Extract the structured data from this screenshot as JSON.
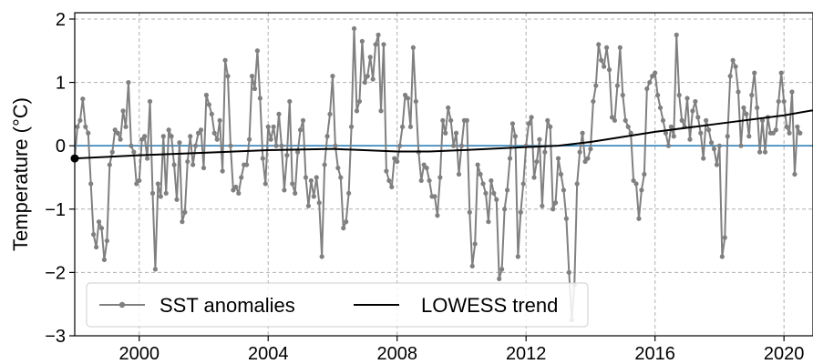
{
  "chart_data": {
    "type": "line",
    "title": "",
    "xlabel": "",
    "ylabel": "Temperature (°C)",
    "xlim": [
      1998.0,
      2020.9
    ],
    "ylim": [
      -3.0,
      2.1
    ],
    "grid": true,
    "legend_position": "bottom-left",
    "x_ticks": [
      2000,
      2004,
      2008,
      2012,
      2016,
      2020
    ],
    "x_tick_labels": [
      "2000",
      "2004",
      "2008",
      "2012",
      "2016",
      "2020"
    ],
    "y_ticks": [
      -3,
      -2,
      -1,
      0,
      1,
      2
    ],
    "y_tick_labels": [
      "−3",
      "−2",
      "−1",
      "0",
      "1",
      "2"
    ],
    "reference_line": {
      "y": 0,
      "color": "#1f77b4"
    },
    "series": [
      {
        "name": "SST anomalies",
        "color": "#808080",
        "marker": "circle",
        "x_start": 1998.0,
        "x_step": 0.08333,
        "values": [
          -0.2,
          0.3,
          0.4,
          0.74,
          0.3,
          0.2,
          -0.6,
          -1.4,
          -1.6,
          -1.2,
          -1.3,
          -1.8,
          -1.5,
          -0.3,
          -0.1,
          0.25,
          0.2,
          0.1,
          0.55,
          0.3,
          1.0,
          0.0,
          -0.1,
          -0.6,
          -0.55,
          0.1,
          0.15,
          -0.2,
          0.7,
          -0.75,
          -1.95,
          -0.6,
          -0.8,
          0.15,
          -0.75,
          0.25,
          0.15,
          -0.3,
          -0.85,
          0.05,
          -1.2,
          -1.05,
          -0.25,
          0.15,
          -0.3,
          0.0,
          0.2,
          0.25,
          -0.35,
          0.8,
          0.65,
          0.5,
          0.2,
          0.1,
          0.4,
          -0.4,
          1.35,
          1.1,
          0.0,
          -0.7,
          -0.65,
          -0.75,
          -0.5,
          -0.3,
          -0.3,
          0.1,
          1.1,
          0.9,
          1.5,
          0.75,
          -0.2,
          -0.6,
          0.3,
          0.1,
          0.3,
          0.0,
          0.5,
          0.0,
          -0.7,
          -0.15,
          0.7,
          -0.6,
          -0.75,
          -0.1,
          0.25,
          0.4,
          -0.5,
          -0.95,
          -0.55,
          -0.8,
          -0.5,
          -0.9,
          -1.75,
          -0.3,
          0.15,
          0.5,
          1.1,
          0.0,
          -0.35,
          -0.5,
          -1.3,
          -1.2,
          -0.75,
          0.3,
          1.85,
          0.55,
          0.7,
          1.65,
          1.0,
          1.1,
          1.4,
          1.05,
          1.6,
          1.75,
          0.55,
          1.6,
          -0.4,
          -0.55,
          -0.65,
          -0.2,
          -0.25,
          0.0,
          0.3,
          0.8,
          0.75,
          0.3,
          1.55,
          0.7,
          -0.1,
          -0.55,
          -0.3,
          -0.35,
          -0.55,
          -0.8,
          -0.8,
          -1.1,
          -0.5,
          0.4,
          0.2,
          0.6,
          0.4,
          0.0,
          0.2,
          -0.45,
          0.0,
          0.4,
          0.4,
          -1.05,
          -1.9,
          -1.55,
          -0.3,
          -0.45,
          -0.6,
          -0.75,
          -1.2,
          -0.55,
          -0.75,
          -0.85,
          -2.1,
          -1.95,
          -1.0,
          -0.7,
          -0.2,
          0.35,
          0.15,
          -1.75,
          -1.05,
          -0.6,
          0.0,
          0.35,
          0.45,
          -0.5,
          -0.25,
          0.1,
          -0.95,
          -0.1,
          0.4,
          0.3,
          -1.0,
          -0.9,
          -0.2,
          -0.45,
          -0.7,
          -1.15,
          -2.0,
          -2.75,
          -2.2,
          -0.6,
          -0.1,
          0.2,
          -0.25,
          -0.2,
          -0.05,
          0.7,
          0.95,
          1.6,
          1.35,
          1.25,
          1.55,
          1.2,
          0.45,
          0.4,
          0.95,
          1.55,
          0.8,
          0.4,
          0.3,
          0.2,
          -0.55,
          -0.6,
          -1.15,
          -0.7,
          -0.45,
          0.9,
          1.0,
          1.1,
          1.15,
          0.8,
          0.6,
          0.4,
          0.2,
          0.0,
          0.3,
          0.15,
          1.75,
          0.8,
          0.4,
          0.3,
          0.75,
          0.1,
          0.55,
          0.7,
          0.45,
          0.2,
          -0.2,
          0.4,
          0.25,
          0.05,
          -0.05,
          -0.3,
          0.0,
          -1.75,
          -1.45,
          0.15,
          1.1,
          1.35,
          1.25,
          0.85,
          0.0,
          0.6,
          0.5,
          0.15,
          0.8,
          1.15,
          0.6,
          -0.1,
          0.4,
          -0.1,
          0.45,
          0.2,
          0.2,
          0.25,
          0.7,
          1.15,
          0.7,
          0.3,
          0.2,
          0.85,
          -0.45,
          0.3,
          0.2
        ]
      },
      {
        "name": "LOWESS trend",
        "color": "#000000",
        "x": [
          1998.0,
          2000.0,
          2002.0,
          2004.0,
          2006.0,
          2008.0,
          2009.0,
          2010.0,
          2012.0,
          2013.0,
          2014.0,
          2016.0,
          2018.0,
          2020.0,
          2020.9
        ],
        "values": [
          -0.2,
          -0.15,
          -0.11,
          -0.07,
          -0.05,
          -0.09,
          -0.09,
          -0.07,
          -0.02,
          0.0,
          0.06,
          0.22,
          0.35,
          0.48,
          0.56
        ]
      }
    ]
  }
}
